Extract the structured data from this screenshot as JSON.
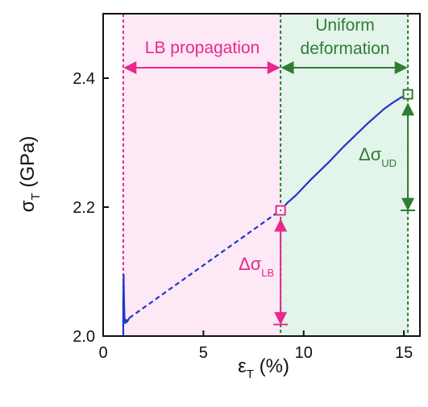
{
  "chart_data": {
    "type": "line",
    "xlabel": "ε",
    "xlabel_sub": "T",
    "xlabel_suffix": " (%)",
    "ylabel": "σ",
    "ylabel_sub": "T",
    "ylabel_suffix": " (GPa)",
    "xlim": [
      0,
      15.8
    ],
    "ylim": [
      2.0,
      2.5
    ],
    "xticks": [
      0,
      5,
      10,
      15
    ],
    "xtick_labels": [
      "0",
      "5",
      "10",
      "15"
    ],
    "yticks": [
      2.0,
      2.2,
      2.4
    ],
    "ytick_labels": [
      "2.0",
      "2.2",
      "2.4"
    ],
    "grid": false,
    "series": [
      {
        "style": "solid",
        "color": "#1f36c8",
        "x": [
          1.0,
          1.0,
          1.02,
          1.03,
          1.05,
          1.06,
          1.08,
          1.1,
          1.15,
          1.2,
          1.3
        ],
        "y": [
          2.0,
          2.05,
          2.095,
          2.07,
          2.045,
          2.03,
          2.025,
          2.02,
          2.025,
          2.022,
          2.028
        ]
      },
      {
        "style": "dashed",
        "color": "#1f36c8",
        "x": [
          1.3,
          8.85
        ],
        "y": [
          2.028,
          2.195
        ]
      },
      {
        "style": "solid",
        "color": "#1f36c8",
        "x": [
          8.85,
          9.2,
          9.6,
          10.0,
          10.4,
          10.8,
          11.2,
          11.6,
          12.0,
          12.4,
          12.8,
          13.2,
          13.6,
          14.0,
          14.4,
          14.8,
          15.2
        ],
        "y": [
          2.195,
          2.207,
          2.218,
          2.231,
          2.244,
          2.256,
          2.268,
          2.281,
          2.294,
          2.306,
          2.318,
          2.33,
          2.341,
          2.352,
          2.361,
          2.369,
          2.375
        ]
      }
    ],
    "regions": [
      {
        "label": "LB propagation",
        "x": [
          1.0,
          8.85
        ],
        "fill": "#fde8f6",
        "line_color": "#e8288c"
      },
      {
        "label_line1": "Uniform",
        "label_line2": "deformation",
        "x": [
          8.85,
          15.2
        ],
        "fill": "#e3f4ea",
        "line_color": "#2e7d32"
      }
    ],
    "markers": [
      {
        "x": 8.85,
        "y": 2.195,
        "color": "#e8288c"
      },
      {
        "x": 15.2,
        "y": 2.375,
        "color": "#2e7d32"
      }
    ],
    "annotations": [
      {
        "text": "Δσ",
        "sub": "LB",
        "color": "#e8288c",
        "x": 8.85,
        "y_from": 2.195,
        "y_to": 2.018
      },
      {
        "text": "Δσ",
        "sub": "UD",
        "color": "#2e7d32",
        "x": 15.2,
        "y_from": 2.375,
        "y_to": 2.195
      }
    ],
    "colors": {
      "lb": "#e8288c",
      "ud": "#2e7d32",
      "data": "#1f36c8",
      "axis": "#111111"
    }
  }
}
